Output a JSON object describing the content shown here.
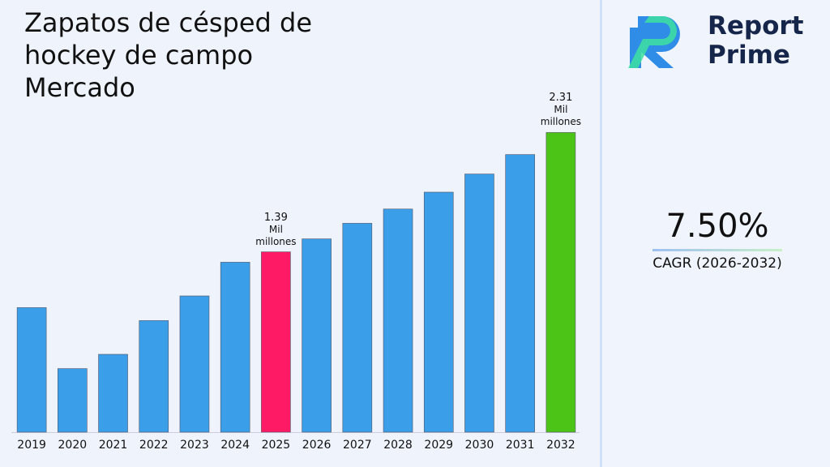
{
  "chart_data": {
    "type": "bar",
    "title": "Zapatos de césped de hockey de campo Mercado",
    "categories": [
      "2019",
      "2020",
      "2021",
      "2022",
      "2023",
      "2024",
      "2025",
      "2026",
      "2027",
      "2028",
      "2029",
      "2030",
      "2031",
      "2032"
    ],
    "values": [
      0.96,
      0.49,
      0.6,
      0.86,
      1.05,
      1.31,
      1.39,
      1.49,
      1.61,
      1.72,
      1.85,
      1.99,
      2.14,
      2.31
    ],
    "colors": [
      "#3a9fe8",
      "#3a9fe8",
      "#3a9fe8",
      "#3a9fe8",
      "#3a9fe8",
      "#3a9fe8",
      "#ff1a66",
      "#3a9fe8",
      "#3a9fe8",
      "#3a9fe8",
      "#3a9fe8",
      "#3a9fe8",
      "#3a9fe8",
      "#4cc417"
    ],
    "data_labels": [
      {
        "index": 6,
        "label": "1.39"
      },
      {
        "index": 13,
        "label": "2.31"
      }
    ],
    "value_unit": "Mil millones",
    "ylim": [
      0,
      2.5
    ]
  },
  "brand": {
    "line1": "Report",
    "line2": "Prime"
  },
  "kpi": {
    "value": "7.50%",
    "label": "CAGR (2026-2032)"
  }
}
